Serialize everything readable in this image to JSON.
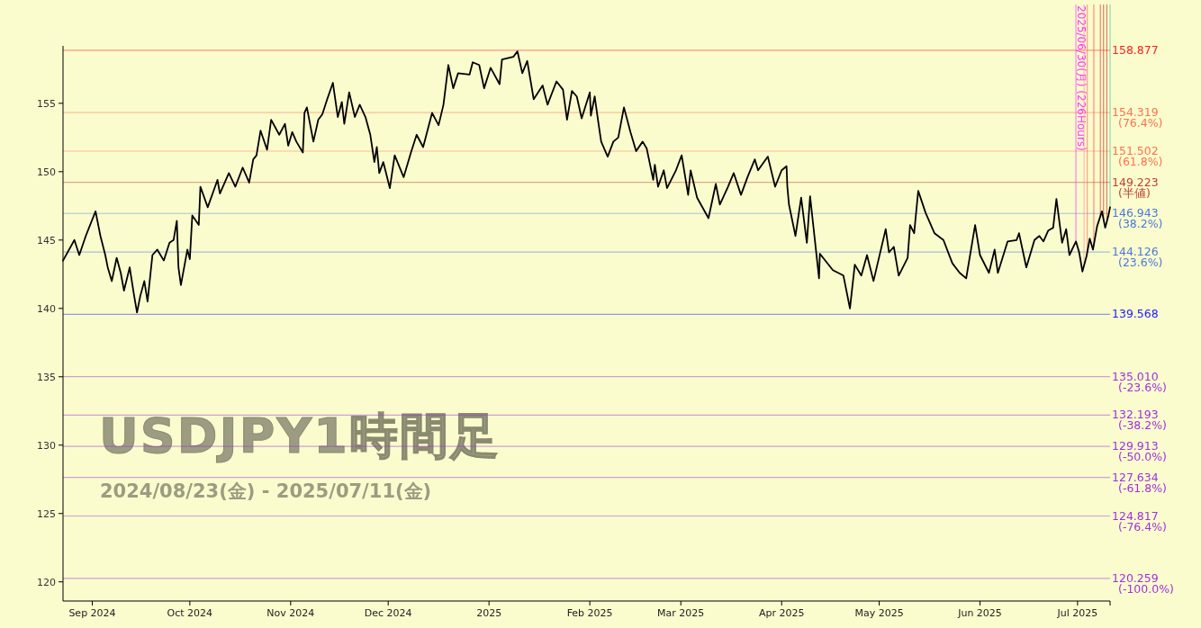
{
  "chart_data": {
    "type": "line",
    "title": "USDJPY1時間足",
    "subtitle": "2024/08/23(金) - 2025/07/11(金)",
    "color": "#000000",
    "line_style": "solid",
    "xlim": [
      "2024-08-23",
      "2025-07-11"
    ],
    "ylim": [
      118.6,
      159.2
    ],
    "xticks": [
      {
        "value": "2024-09-01",
        "label": "Sep 2024"
      },
      {
        "value": "2024-10-01",
        "label": "Oct 2024"
      },
      {
        "value": "2024-11-01",
        "label": "Nov 2024"
      },
      {
        "value": "2024-12-01",
        "label": "Dec 2024"
      },
      {
        "value": "2025-01-01",
        "label": "2025"
      },
      {
        "value": "2025-02-01",
        "label": "Feb 2025"
      },
      {
        "value": "2025-03-01",
        "label": "Mar 2025"
      },
      {
        "value": "2025-04-01",
        "label": "Apr 2025"
      },
      {
        "value": "2025-05-01",
        "label": "May 2025"
      },
      {
        "value": "2025-06-01",
        "label": "Jun 2025"
      },
      {
        "value": "2025-07-01",
        "label": "Jul 2025"
      }
    ],
    "yticks": [
      120,
      125,
      130,
      135,
      140,
      145,
      150,
      155
    ],
    "x": [
      "2024-08-23",
      "2024-08-26T12:00",
      "2024-08-28",
      "2024-08-30",
      "2024-09-02",
      "2024-09-03T12:00",
      "2024-09-05",
      "2024-09-05T18:00",
      "2024-09-07",
      "2024-09-08T12:00",
      "2024-09-09T18:00",
      "2024-09-10T18:00",
      "2024-09-12T12:00",
      "2024-09-13T18:00",
      "2024-09-14T18:00",
      "2024-09-15T18:00",
      "2024-09-17",
      "2024-09-18",
      "2024-09-19T12:00",
      "2024-09-21",
      "2024-09-23",
      "2024-09-24T18:00",
      "2024-09-26",
      "2024-09-27",
      "2024-09-27T12:00",
      "2024-09-28T06:00",
      "2024-09-30T06:00",
      "2024-10-01",
      "2024-10-01T18:00",
      "2024-10-03T18:00",
      "2024-10-04T06:00",
      "2024-10-06T12:00",
      "2024-10-09T12:00",
      "2024-10-10T06:00",
      "2024-10-13",
      "2024-10-15",
      "2024-10-17T06:00",
      "2024-10-19T06:00",
      "2024-10-20T12:00",
      "2024-10-21T12:00",
      "2024-10-22T18:00",
      "2024-10-24T18:00",
      "2024-10-26",
      "2024-10-28T12:00",
      "2024-10-30T06:00",
      "2024-10-31T06:00",
      "2024-11-01T12:00",
      "2024-11-02T18:00",
      "2024-11-04T18:00",
      "2024-11-05T06:00",
      "2024-11-06",
      "2024-11-08",
      "2024-11-09T12:00",
      "2024-11-10T18:00",
      "2024-11-12T06:00",
      "2024-11-14",
      "2024-11-15T12:00",
      "2024-11-16T18:00",
      "2024-11-17T12:00",
      "2024-11-19",
      "2024-11-20T18:00",
      "2024-11-22T06:00",
      "2024-11-24",
      "2024-11-25T12:00",
      "2024-11-26T18:00",
      "2024-11-27T12:00",
      "2024-11-28T06:00",
      "2024-11-29T12:00",
      "2024-12-01T12:00",
      "2024-12-03",
      "2024-12-05T18:00",
      "2024-12-08",
      "2024-12-09T18:00",
      "2024-12-11T18:00",
      "2024-12-14T12:00",
      "2024-12-16T12:00",
      "2024-12-18",
      "2024-12-19T12:00",
      "2024-12-21",
      "2024-12-22T12:00",
      "2024-12-26",
      "2024-12-27",
      "2024-12-29",
      "2024-12-30T12:00",
      "2025-01-01T12:00",
      "2025-01-04T06:00",
      "2025-01-05",
      "2025-01-08T12:00",
      "2025-01-09T18:00",
      "2025-01-11T06:00",
      "2025-01-12T18:00",
      "2025-01-14T18:00",
      "2025-01-17T12:00",
      "2025-01-19",
      "2025-01-21T18:00",
      "2025-01-23T18:00",
      "2025-01-25",
      "2025-01-26T12:00",
      "2025-01-28",
      "2025-01-29T12:00",
      "2025-02-01",
      "2025-02-01T08:00",
      "2025-02-02T12:00",
      "2025-02-03T18:00",
      "2025-02-04T12:00",
      "2025-02-06T12:00",
      "2025-02-08T06:00",
      "2025-02-09T18:00",
      "2025-02-11T12:00",
      "2025-02-13T12:00",
      "2025-02-15T06:00",
      "2025-02-17T06:00",
      "2025-02-18T12:00",
      "2025-02-20T12:00",
      "2025-02-21",
      "2025-02-22",
      "2025-02-23T18:00",
      "2025-02-24T18:00",
      "2025-02-27T12:00",
      "2025-03-01T06:00",
      "2025-03-03T06:00",
      "2025-03-04",
      "2025-03-06",
      "2025-03-09T12:00",
      "2025-03-11T18:00",
      "2025-03-13",
      "2025-03-15T12:00",
      "2025-03-17T06:00",
      "2025-03-19T12:00",
      "2025-03-21T12:00",
      "2025-03-23T18:00",
      "2025-03-24T18:00",
      "2025-03-27T18:00",
      "2025-03-30",
      "2025-04-01",
      "2025-04-02T12:00",
      "2025-04-02T18:00",
      "2025-04-03T06:00",
      "2025-04-05T06:00",
      "2025-04-07",
      "2025-04-08T18:00",
      "2025-04-09T18:00",
      "2025-04-12T12:00",
      "2025-04-12T18:00",
      "2025-04-16T18:00",
      "2025-04-20",
      "2025-04-22",
      "2025-04-23T12:00",
      "2025-04-25T12:00",
      "2025-04-27T06:00",
      "2025-04-29T06:00",
      "2025-05-03",
      "2025-05-04",
      "2025-05-05T12:00",
      "2025-05-07",
      "2025-05-09T18:00",
      "2025-05-10T12:00",
      "2025-05-11T18:00",
      "2025-05-13",
      "2025-05-15T06:00",
      "2025-05-18",
      "2025-05-20T18:00",
      "2025-05-23T12:00",
      "2025-05-25T18:00",
      "2025-05-27T18:00",
      "2025-05-30T12:00",
      "2025-06-01",
      "2025-06-03T18:00",
      "2025-06-05T12:00",
      "2025-06-06T12:00",
      "2025-06-09T12:00",
      "2025-06-12T06:00",
      "2025-06-13",
      "2025-06-15T06:00",
      "2025-06-17T18:00",
      "2025-06-19T06:00",
      "2025-06-20T12:00",
      "2025-06-22",
      "2025-06-23T12:00",
      "2025-06-24T12:00",
      "2025-06-26T06:00",
      "2025-06-27T12:00",
      "2025-06-28T12:00",
      "2025-06-30T12:00",
      "2025-07-01T12:00",
      "2025-07-02T12:00",
      "2025-07-03T18:00",
      "2025-07-04T18:00",
      "2025-07-05T18:00",
      "2025-07-07",
      "2025-07-08T12:00",
      "2025-07-09T12:00",
      "2025-07-10T12:00",
      "2025-07-11"
    ],
    "values": [
      143.5,
      145.0,
      143.9,
      145.3,
      147.1,
      145.3,
      143.9,
      143.0,
      142.0,
      143.7,
      142.6,
      141.3,
      143.0,
      141.1,
      139.7,
      140.9,
      142.0,
      140.5,
      143.9,
      144.3,
      143.5,
      144.8,
      145.0,
      146.4,
      143.0,
      141.7,
      144.3,
      143.6,
      146.8,
      146.1,
      148.9,
      147.4,
      149.4,
      148.4,
      149.9,
      148.9,
      150.3,
      149.2,
      150.9,
      151.2,
      153.0,
      151.6,
      153.8,
      152.7,
      153.5,
      151.9,
      152.9,
      152.2,
      151.4,
      154.3,
      154.7,
      152.2,
      153.8,
      154.2,
      155.3,
      156.5,
      154.0,
      155.1,
      153.5,
      155.8,
      154.0,
      154.9,
      154.0,
      152.7,
      150.7,
      151.8,
      149.9,
      150.7,
      148.8,
      151.2,
      149.6,
      151.4,
      152.7,
      151.8,
      154.3,
      153.4,
      154.9,
      157.8,
      156.1,
      157.2,
      157.1,
      158.0,
      157.8,
      156.1,
      157.6,
      156.4,
      158.2,
      158.4,
      158.8,
      157.2,
      158.1,
      155.3,
      156.3,
      154.9,
      156.6,
      156.0,
      153.8,
      155.9,
      155.5,
      153.9,
      155.8,
      154.1,
      155.5,
      153.4,
      152.2,
      151.1,
      152.2,
      152.5,
      154.7,
      152.9,
      151.5,
      152.2,
      151.7,
      149.4,
      150.5,
      148.9,
      150.1,
      148.8,
      150.1,
      151.2,
      148.3,
      150.1,
      148.1,
      146.6,
      149.1,
      147.6,
      148.9,
      149.9,
      148.3,
      149.6,
      150.9,
      150.1,
      151.1,
      148.9,
      150.1,
      150.4,
      148.9,
      147.6,
      145.3,
      148.1,
      144.8,
      148.2,
      142.2,
      144.0,
      142.8,
      142.4,
      140.0,
      143.2,
      142.4,
      143.9,
      142.0,
      145.8,
      144.1,
      144.5,
      142.4,
      143.7,
      146.1,
      145.5,
      148.6,
      147.0,
      145.5,
      145.0,
      143.3,
      142.6,
      142.2,
      146.1,
      143.9,
      142.6,
      144.3,
      142.6,
      144.9,
      145.0,
      145.5,
      143.0,
      145.0,
      145.3,
      144.9,
      145.7,
      145.9,
      148.0,
      144.8,
      145.8,
      143.9,
      144.9,
      144.1,
      142.7,
      143.8,
      145.1,
      144.3,
      146.0,
      147.1,
      145.9,
      146.8,
      147.4
    ],
    "ref_lines": [
      {
        "axis": "y",
        "value": 158.877,
        "label": "158.877",
        "color": "#ff2020"
      },
      {
        "axis": "y",
        "value": 154.319,
        "label": "154.319 (76.4%)",
        "color": "#ff7050"
      },
      {
        "axis": "y",
        "value": 151.502,
        "label": "151.502 (61.8%)",
        "color": "#ff7050"
      },
      {
        "axis": "y",
        "value": 149.223,
        "label": "149.223 (半値)",
        "color": "#c04030"
      },
      {
        "axis": "y",
        "value": 146.943,
        "label": "146.943 (38.2%)",
        "color": "#4a78e0"
      },
      {
        "axis": "y",
        "value": 144.126,
        "label": "144.126 (23.6%)",
        "color": "#4a78e0"
      },
      {
        "axis": "y",
        "value": 139.568,
        "label": "139.568",
        "color": "#2020ff"
      },
      {
        "axis": "y",
        "value": 135.01,
        "label": "135.010 (-23.6%)",
        "color": "#a030e0"
      },
      {
        "axis": "y",
        "value": 132.193,
        "label": "132.193 (-38.2%)",
        "color": "#a030e0"
      },
      {
        "axis": "y",
        "value": 129.913,
        "label": "129.913 (-50.0%)",
        "color": "#a030e0"
      },
      {
        "axis": "y",
        "value": 127.634,
        "label": "127.634 (-61.8%)",
        "color": "#a030e0"
      },
      {
        "axis": "y",
        "value": 124.817,
        "label": "124.817 (-76.4%)",
        "color": "#a030e0"
      },
      {
        "axis": "y",
        "value": 120.259,
        "label": "120.259 (-100.0%)",
        "color": "#a030e0"
      },
      {
        "axis": "x",
        "value": "2025-06-30T12:00",
        "label": "2025/06/30(月) (226Hours)",
        "color": "#ff30ff"
      },
      {
        "axis": "x",
        "value": "2025-07-03",
        "color": "#ff9090"
      },
      {
        "axis": "x",
        "value": "2025-07-04",
        "color": "#ff6060"
      },
      {
        "axis": "x",
        "value": "2025-07-06",
        "color": "#ff4040"
      },
      {
        "axis": "x",
        "value": "2025-07-08",
        "color": "#e03030"
      },
      {
        "axis": "x",
        "value": "2025-07-09",
        "color": "#d02020"
      },
      {
        "axis": "x",
        "value": "2025-07-10",
        "color": "#c03030"
      },
      {
        "axis": "x",
        "value": "2025-07-11",
        "color": "#40c0a0"
      }
    ]
  }
}
